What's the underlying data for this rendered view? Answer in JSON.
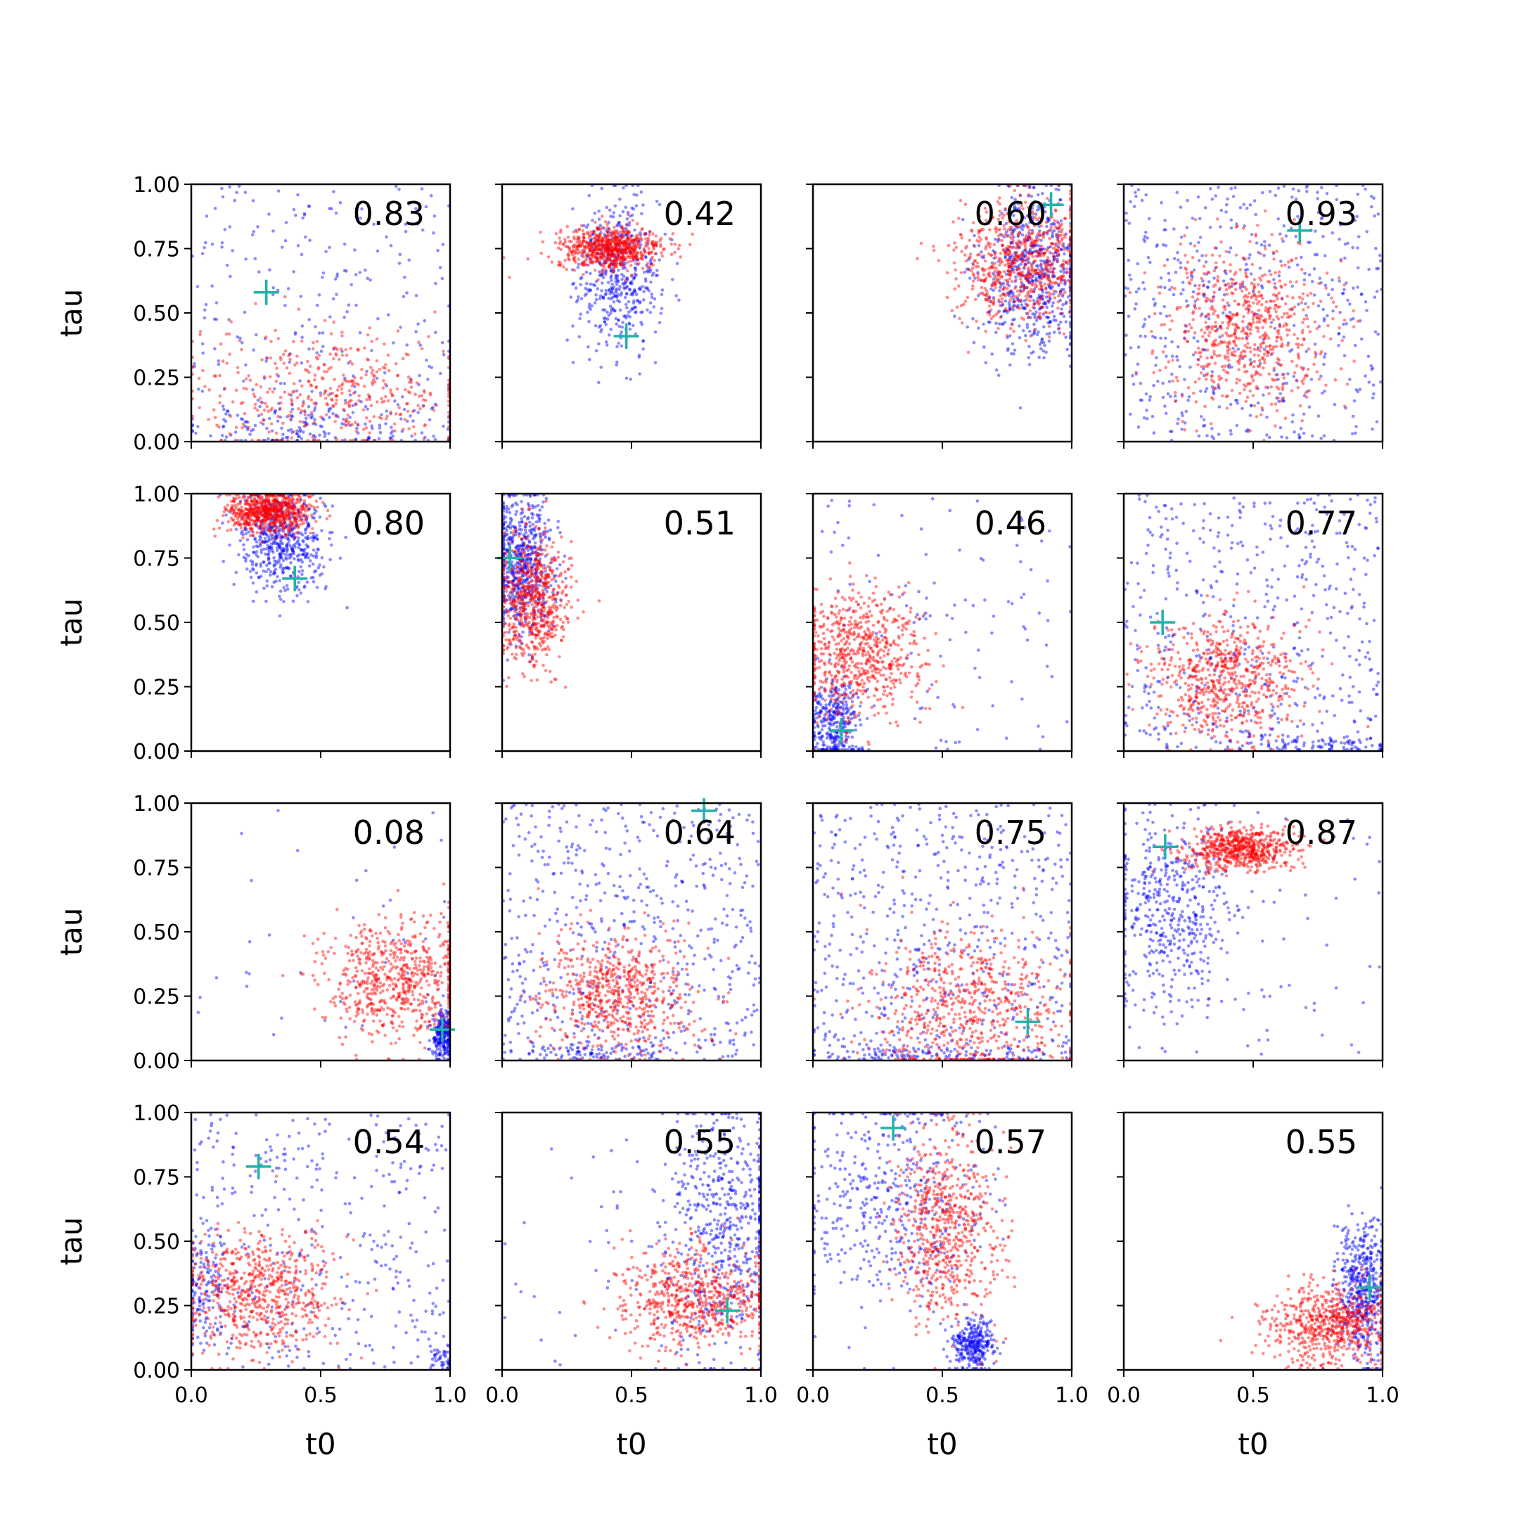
{
  "chart_data": {
    "type": "scatter",
    "layout": {
      "rows": 4,
      "cols": 4
    },
    "xlabel": "t0",
    "ylabel": "tau",
    "xlim": [
      0,
      1
    ],
    "ylim": [
      0,
      1
    ],
    "x_ticks": [
      "0.0",
      "0.5",
      "1.0"
    ],
    "y_ticks": [
      "0.00",
      "0.25",
      "0.50",
      "0.75",
      "1.00"
    ],
    "grid": false,
    "colors": {
      "blue_series": "#0000ff",
      "red_series": "#ff0000",
      "marker": "#20b2aa"
    },
    "panels": [
      {
        "label": "0.83",
        "marker": [
          0.29,
          0.58
        ],
        "blue": [
          {
            "cx": 0.5,
            "cy": 0.5,
            "sx": 0.3,
            "sy": 0.3,
            "n": 260,
            "uniform": true
          },
          {
            "cx": 0.5,
            "cy": 0.06,
            "sx": 0.25,
            "sy": 0.05,
            "n": 160
          }
        ],
        "red": [
          {
            "cx": 0.55,
            "cy": 0.2,
            "sx": 0.28,
            "sy": 0.12,
            "n": 420
          }
        ]
      },
      {
        "label": "0.42",
        "marker": [
          0.48,
          0.41
        ],
        "blue": [
          {
            "cx": 0.45,
            "cy": 0.65,
            "sx": 0.08,
            "sy": 0.15,
            "n": 480
          }
        ],
        "red": [
          {
            "cx": 0.42,
            "cy": 0.75,
            "sx": 0.1,
            "sy": 0.04,
            "n": 700
          }
        ]
      },
      {
        "label": "0.60",
        "marker": [
          0.92,
          0.92
        ],
        "blue": [
          {
            "cx": 0.85,
            "cy": 0.65,
            "sx": 0.1,
            "sy": 0.16,
            "n": 600
          }
        ],
        "red": [
          {
            "cx": 0.8,
            "cy": 0.7,
            "sx": 0.12,
            "sy": 0.12,
            "n": 700
          }
        ]
      },
      {
        "label": "0.93",
        "marker": [
          0.68,
          0.82
        ],
        "blue": [
          {
            "cx": 0.5,
            "cy": 0.5,
            "sx": 0.3,
            "sy": 0.3,
            "n": 520,
            "uniform": true
          }
        ],
        "red": [
          {
            "cx": 0.48,
            "cy": 0.45,
            "sx": 0.16,
            "sy": 0.15,
            "n": 700
          }
        ]
      },
      {
        "label": "0.80",
        "marker": [
          0.4,
          0.67
        ],
        "blue": [
          {
            "cx": 0.35,
            "cy": 0.82,
            "sx": 0.08,
            "sy": 0.1,
            "n": 550
          }
        ],
        "red": [
          {
            "cx": 0.3,
            "cy": 0.93,
            "sx": 0.08,
            "sy": 0.04,
            "n": 700
          }
        ]
      },
      {
        "label": "0.51",
        "marker": [
          0.03,
          0.75
        ],
        "blue": [
          {
            "cx": 0.07,
            "cy": 0.72,
            "sx": 0.06,
            "sy": 0.14,
            "n": 600
          }
        ],
        "red": [
          {
            "cx": 0.12,
            "cy": 0.58,
            "sx": 0.07,
            "sy": 0.12,
            "n": 650
          }
        ]
      },
      {
        "label": "0.46",
        "marker": [
          0.11,
          0.08
        ],
        "blue": [
          {
            "cx": 0.08,
            "cy": 0.12,
            "sx": 0.05,
            "sy": 0.08,
            "n": 320
          },
          {
            "cx": 0.5,
            "cy": 0.5,
            "sx": 0.3,
            "sy": 0.3,
            "n": 120,
            "uniform": true
          }
        ],
        "red": [
          {
            "cx": 0.18,
            "cy": 0.38,
            "sx": 0.12,
            "sy": 0.12,
            "n": 650
          }
        ]
      },
      {
        "label": "0.77",
        "marker": [
          0.15,
          0.5
        ],
        "blue": [
          {
            "cx": 0.5,
            "cy": 0.5,
            "sx": 0.3,
            "sy": 0.3,
            "n": 480,
            "uniform": true
          },
          {
            "cx": 0.7,
            "cy": 0.03,
            "sx": 0.2,
            "sy": 0.02,
            "n": 100
          }
        ],
        "red": [
          {
            "cx": 0.38,
            "cy": 0.28,
            "sx": 0.15,
            "sy": 0.12,
            "n": 650
          }
        ]
      },
      {
        "label": "0.08",
        "marker": [
          0.97,
          0.12
        ],
        "blue": [
          {
            "cx": 0.97,
            "cy": 0.1,
            "sx": 0.02,
            "sy": 0.05,
            "n": 260
          },
          {
            "cx": 0.5,
            "cy": 0.5,
            "sx": 0.3,
            "sy": 0.3,
            "n": 40,
            "uniform": true
          }
        ],
        "red": [
          {
            "cx": 0.78,
            "cy": 0.32,
            "sx": 0.14,
            "sy": 0.12,
            "n": 650
          }
        ]
      },
      {
        "label": "0.64",
        "marker": [
          0.78,
          0.97
        ],
        "blue": [
          {
            "cx": 0.5,
            "cy": 0.5,
            "sx": 0.3,
            "sy": 0.3,
            "n": 560,
            "uniform": true
          },
          {
            "cx": 0.35,
            "cy": 0.03,
            "sx": 0.15,
            "sy": 0.02,
            "n": 90
          }
        ],
        "red": [
          {
            "cx": 0.45,
            "cy": 0.25,
            "sx": 0.15,
            "sy": 0.12,
            "n": 650
          }
        ]
      },
      {
        "label": "0.75",
        "marker": [
          0.83,
          0.15
        ],
        "blue": [
          {
            "cx": 0.5,
            "cy": 0.5,
            "sx": 0.3,
            "sy": 0.3,
            "n": 560,
            "uniform": true
          },
          {
            "cx": 0.5,
            "cy": 0.03,
            "sx": 0.25,
            "sy": 0.02,
            "n": 120
          }
        ],
        "red": [
          {
            "cx": 0.6,
            "cy": 0.2,
            "sx": 0.2,
            "sy": 0.15,
            "n": 650
          }
        ]
      },
      {
        "label": "0.87",
        "marker": [
          0.16,
          0.83
        ],
        "blue": [
          {
            "cx": 0.18,
            "cy": 0.6,
            "sx": 0.12,
            "sy": 0.18,
            "n": 460
          },
          {
            "cx": 0.5,
            "cy": 0.5,
            "sx": 0.3,
            "sy": 0.3,
            "n": 80,
            "uniform": true
          }
        ],
        "red": [
          {
            "cx": 0.45,
            "cy": 0.82,
            "sx": 0.1,
            "sy": 0.04,
            "n": 650
          }
        ]
      },
      {
        "label": "0.54",
        "marker": [
          0.26,
          0.79
        ],
        "blue": [
          {
            "cx": 0.5,
            "cy": 0.5,
            "sx": 0.3,
            "sy": 0.3,
            "n": 380,
            "uniform": true
          },
          {
            "cx": 0.05,
            "cy": 0.3,
            "sx": 0.05,
            "sy": 0.12,
            "n": 120
          },
          {
            "cx": 0.97,
            "cy": 0.05,
            "sx": 0.02,
            "sy": 0.03,
            "n": 40
          }
        ],
        "red": [
          {
            "cx": 0.25,
            "cy": 0.3,
            "sx": 0.15,
            "sy": 0.12,
            "n": 650
          }
        ]
      },
      {
        "label": "0.55",
        "marker": [
          0.87,
          0.23
        ],
        "blue": [
          {
            "cx": 0.85,
            "cy": 0.55,
            "sx": 0.12,
            "sy": 0.25,
            "n": 550
          },
          {
            "cx": 0.5,
            "cy": 0.5,
            "sx": 0.3,
            "sy": 0.3,
            "n": 60,
            "uniform": true
          }
        ],
        "red": [
          {
            "cx": 0.75,
            "cy": 0.27,
            "sx": 0.15,
            "sy": 0.1,
            "n": 650
          }
        ]
      },
      {
        "label": "0.57",
        "marker": [
          0.31,
          0.94
        ],
        "blue": [
          {
            "cx": 0.3,
            "cy": 0.65,
            "sx": 0.18,
            "sy": 0.22,
            "n": 450
          },
          {
            "cx": 0.62,
            "cy": 0.1,
            "sx": 0.04,
            "sy": 0.05,
            "n": 300
          }
        ],
        "red": [
          {
            "cx": 0.52,
            "cy": 0.55,
            "sx": 0.1,
            "sy": 0.18,
            "n": 650
          }
        ]
      },
      {
        "label": "0.55",
        "marker": [
          0.95,
          0.32
        ],
        "blue": [
          {
            "cx": 0.92,
            "cy": 0.3,
            "sx": 0.05,
            "sy": 0.14,
            "n": 500
          }
        ],
        "red": [
          {
            "cx": 0.8,
            "cy": 0.18,
            "sx": 0.12,
            "sy": 0.08,
            "n": 650
          }
        ]
      }
    ]
  }
}
